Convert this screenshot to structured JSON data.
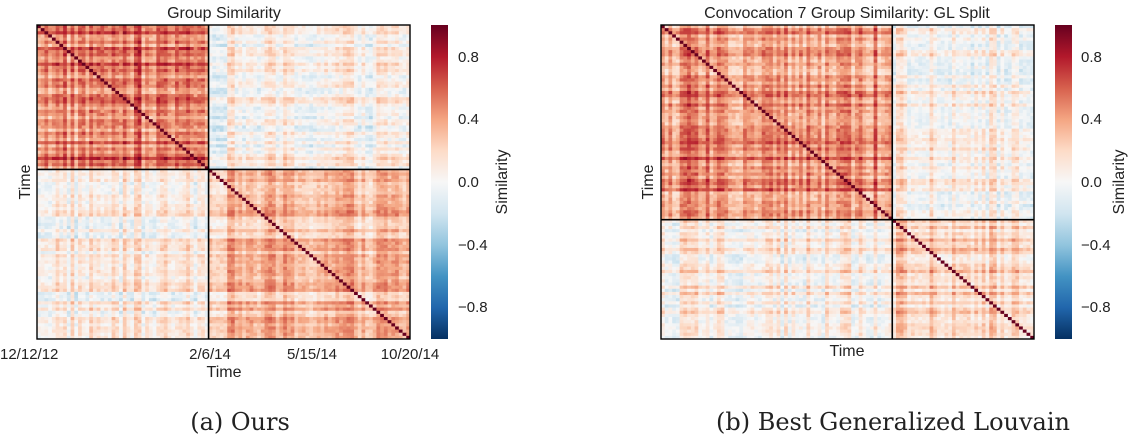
{
  "chart_data": [
    {
      "type": "heatmap",
      "title": "Group Similarity",
      "xlabel": "Time",
      "ylabel": "Time",
      "x_tick_labels": [
        "12/12/12",
        "2/6/14",
        "5/15/14",
        "10/20/14"
      ],
      "size": 100,
      "split_index": 46,
      "colorbar": {
        "label": "Similarity",
        "range": [
          -1.0,
          1.0
        ],
        "ticks": [
          "0.8",
          "0.4",
          "0.0",
          "−0.4",
          "−0.8"
        ],
        "tick_values": [
          0.8,
          0.4,
          0.0,
          -0.4,
          -0.8
        ]
      },
      "colormap": "RdBu_r",
      "block_mean_similarity": {
        "first_block": 0.45,
        "second_block": 0.3,
        "off_diagonal": 0.05
      },
      "caption": "(a) Ours"
    },
    {
      "type": "heatmap",
      "title": "Convocation 7 Group Similarity: GL Split",
      "xlabel": "Time",
      "ylabel": "Time",
      "x_tick_labels": [],
      "size": 100,
      "split_index": 62,
      "colorbar": {
        "label": "Similarity",
        "range": [
          -1.0,
          1.0
        ],
        "ticks": [
          "0.8",
          "0.4",
          "0.0",
          "−0.4",
          "−0.8"
        ],
        "tick_values": [
          0.8,
          0.4,
          0.0,
          -0.4,
          -0.8
        ]
      },
      "colormap": "RdBu_r",
      "block_mean_similarity": {
        "first_block": 0.4,
        "second_block": 0.25,
        "off_diagonal": 0.08
      },
      "caption": "(b) Best Generalized Louvain"
    }
  ]
}
